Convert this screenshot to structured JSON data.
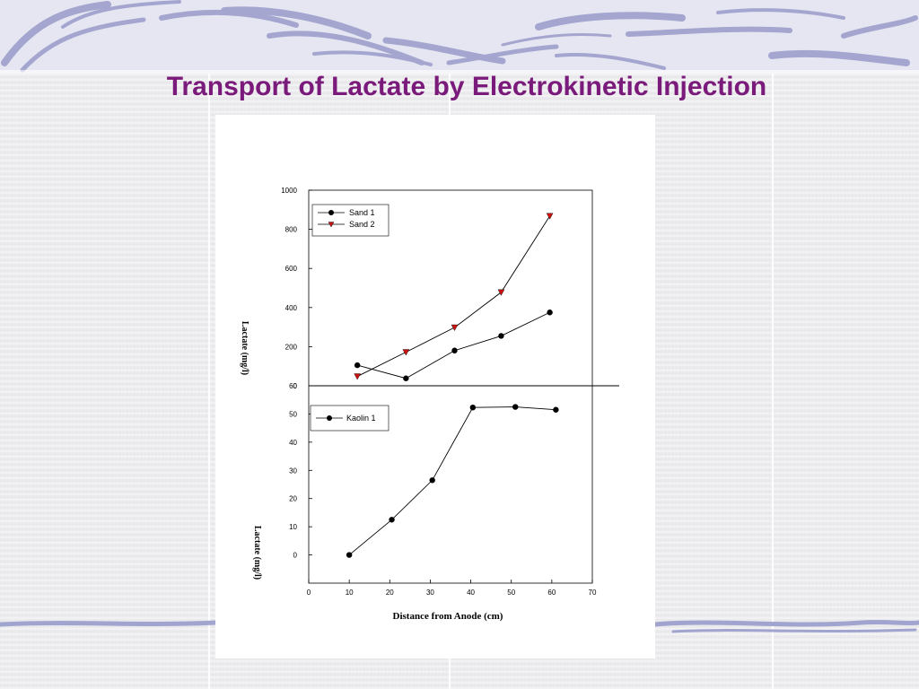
{
  "slide": {
    "title": "Transport of Lactate by Electrokinetic Injection"
  },
  "colors": {
    "title": "#7a1a7a",
    "banner_swirl": "#9da0cc",
    "marker_sand1": "#000000",
    "marker_sand2": "#cc1111"
  },
  "chart_data": [
    {
      "type": "line",
      "ylabel": "Lactate (mg/l)",
      "xlim": [
        0,
        70
      ],
      "ylim": [
        0,
        1000
      ],
      "yticks": [
        0,
        200,
        400,
        600,
        800,
        1000
      ],
      "ytick_labels": [
        "0",
        "200",
        "400",
        "600",
        "800",
        "1000"
      ],
      "legend_position": "top-left",
      "series": [
        {
          "name": "Sand 1",
          "marker": "circle",
          "x": [
            12,
            24,
            36,
            47.5,
            59.5
          ],
          "y": [
            105,
            38,
            180,
            255,
            375
          ]
        },
        {
          "name": "Sand 2",
          "marker": "triangle-down",
          "x": [
            12,
            24,
            36,
            47.5,
            59.5
          ],
          "y": [
            48,
            172,
            298,
            478,
            868
          ]
        }
      ]
    },
    {
      "type": "line",
      "ylabel": "Lactate (mg/l)",
      "xlabel": "Distance from Anode (cm)",
      "xlim": [
        0,
        70
      ],
      "ylim": [
        -10,
        60
      ],
      "xticks": [
        0,
        10,
        20,
        30,
        40,
        50,
        60,
        70
      ],
      "xtick_labels": [
        "0",
        "10",
        "20",
        "30",
        "40",
        "50",
        "60",
        "70"
      ],
      "yticks": [
        0,
        10,
        20,
        30,
        40,
        50,
        60
      ],
      "ytick_labels": [
        "0",
        "10",
        "20",
        "30",
        "40",
        "50",
        "60"
      ],
      "legend_position": "top-left",
      "series": [
        {
          "name": "Kaolin 1",
          "marker": "circle",
          "x": [
            10,
            20.5,
            30.5,
            40.5,
            51,
            61
          ],
          "y": [
            0,
            12.5,
            26.5,
            52.3,
            52.5,
            51.5
          ]
        }
      ]
    }
  ]
}
